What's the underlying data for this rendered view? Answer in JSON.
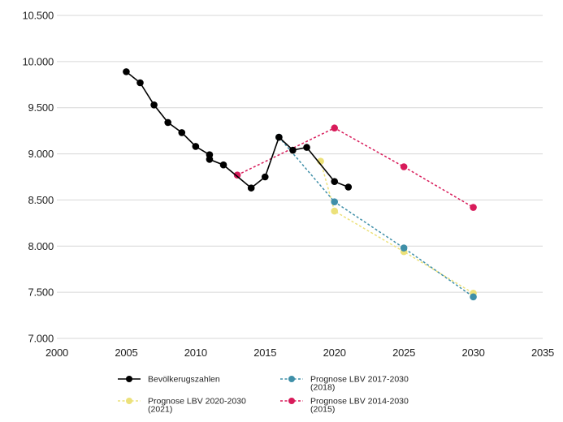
{
  "chart_data": {
    "type": "line",
    "title": "",
    "xlabel": "",
    "ylabel": "",
    "xlim": [
      2000,
      2035
    ],
    "ylim": [
      7000,
      10500
    ],
    "x_ticks": [
      2000,
      2005,
      2010,
      2015,
      2020,
      2025,
      2030,
      2035
    ],
    "x_tick_labels": [
      "2000",
      "2005",
      "2010",
      "2015",
      "2020",
      "2025",
      "2030",
      "2035"
    ],
    "y_ticks": [
      7000,
      7500,
      8000,
      8500,
      9000,
      9500,
      10000,
      10500
    ],
    "y_tick_labels": [
      "7.000",
      "7.500",
      "8.000",
      "8.500",
      "9.000",
      "9.500",
      "10.000",
      "10.500"
    ],
    "grid": "horizontal",
    "legend_position": "bottom",
    "series": [
      {
        "name": "Bevölkerugszahlen",
        "color": "#000000",
        "line_style": "solid",
        "x": [
          2005,
          2006,
          2007,
          2008,
          2009,
          2010,
          2011,
          2011,
          2012,
          2014,
          2015,
          2016,
          2017,
          2018,
          2020,
          2021
        ],
        "y": [
          9890,
          9770,
          9530,
          9340,
          9230,
          9080,
          8990,
          8940,
          8880,
          8630,
          8750,
          9180,
          9040,
          9070,
          8700,
          8640
        ]
      },
      {
        "name": "Prognose LBV 2017-2030\n(2018)",
        "color": "#3f8fa8",
        "line_style": "dashed",
        "x": [
          2016,
          2020,
          2025,
          2030
        ],
        "y": [
          9180,
          8480,
          7980,
          7450
        ]
      },
      {
        "name": "Prognose LBV 2020-2030\n(2021)",
        "color": "#ece17a",
        "line_style": "dashed",
        "x": [
          2019,
          2020,
          2025,
          2030
        ],
        "y": [
          8920,
          8380,
          7940,
          7490
        ]
      },
      {
        "name": "Prognose LBV 2014-2030\n(2015)",
        "color": "#d81b5a",
        "line_style": "dashed",
        "x": [
          2013,
          2020,
          2025,
          2030
        ],
        "y": [
          8770,
          9280,
          8860,
          8420
        ]
      }
    ],
    "legend_order": [
      0,
      1,
      2,
      3
    ]
  }
}
